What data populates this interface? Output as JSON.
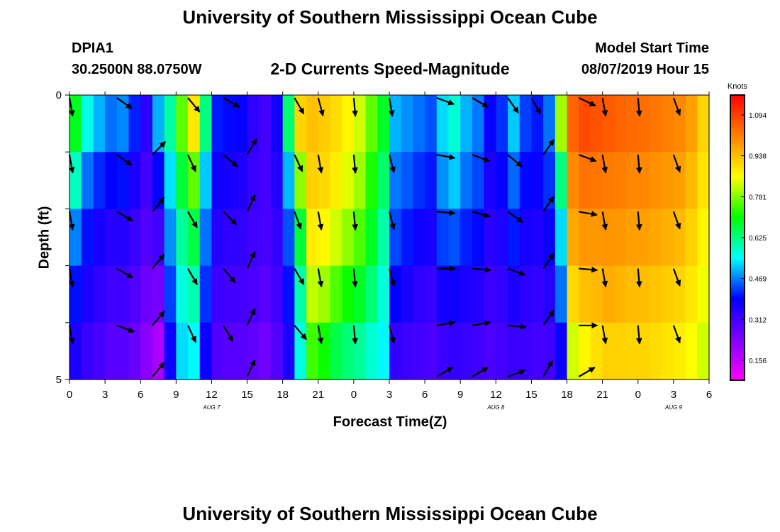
{
  "page": {
    "top_title": "University of Southern Mississippi Ocean Cube",
    "bottom_title": "University of Southern Mississippi Ocean Cube",
    "station": "DPIA1",
    "coords": "30.2500N 88.0750W",
    "subtitle": "2-D Currents Speed-Magnitude",
    "model_start_label": "Model Start Time",
    "model_start_value": "08/07/2019 Hour 15"
  },
  "chart_data": {
    "type": "heatmap",
    "title": "2-D Currents Speed-Magnitude",
    "xlabel": "Forecast Time(Z)",
    "ylabel": "Depth (ft)",
    "x_tick_labels": [
      "0",
      "3",
      "6",
      "9",
      "12",
      "15",
      "18",
      "21",
      "0",
      "3",
      "6",
      "9",
      "12",
      "15",
      "18",
      "21",
      "0",
      "3",
      "6"
    ],
    "x_range_hours": [
      0,
      54
    ],
    "date_labels": [
      {
        "text": "AUG 7",
        "hour": 12
      },
      {
        "text": "AUG 8",
        "hour": 36
      },
      {
        "text": "AUG 9",
        "hour": 51
      }
    ],
    "y_tick_labels": [
      "0",
      "5"
    ],
    "ylim": [
      0,
      5
    ],
    "depth_levels": [
      0,
      1,
      2,
      3,
      4,
      5
    ],
    "colorbar": {
      "unit": "Knots",
      "ticks": [
        "1.094",
        "0.938",
        "0.781",
        "0.625",
        "0.469",
        "0.312",
        "0.156"
      ],
      "tick_values": [
        1.094,
        0.938,
        0.781,
        0.625,
        0.469,
        0.312,
        0.156
      ],
      "range": [
        0.08,
        1.17
      ],
      "colors": [
        "#ff00ff",
        "#8000ff",
        "#0000ff",
        "#00ffff",
        "#00ff00",
        "#ffff00",
        "#ff8000",
        "#ff0000"
      ]
    },
    "speed_profile": [
      {
        "hour": 0,
        "speeds": [
          0.72,
          0.65,
          0.52,
          0.42,
          0.38,
          0.34
        ]
      },
      {
        "hour": 1,
        "speeds": [
          0.62,
          0.5,
          0.42,
          0.38,
          0.34,
          0.31
        ]
      },
      {
        "hour": 2,
        "speeds": [
          0.55,
          0.45,
          0.38,
          0.35,
          0.32,
          0.29
        ]
      },
      {
        "hour": 3,
        "speeds": [
          0.5,
          0.42,
          0.36,
          0.33,
          0.3,
          0.27
        ]
      },
      {
        "hour": 4,
        "speeds": [
          0.52,
          0.43,
          0.37,
          0.33,
          0.3,
          0.27
        ]
      },
      {
        "hour": 5,
        "speeds": [
          0.44,
          0.38,
          0.34,
          0.31,
          0.28,
          0.25
        ]
      },
      {
        "hour": 6,
        "speeds": [
          0.36,
          0.32,
          0.3,
          0.28,
          0.24,
          0.21
        ]
      },
      {
        "hour": 7,
        "speeds": [
          0.58,
          0.42,
          0.35,
          0.28,
          0.22,
          0.15
        ]
      },
      {
        "hour": 8,
        "speeds": [
          0.65,
          0.56,
          0.5,
          0.46,
          0.4,
          0.35
        ]
      },
      {
        "hour": 9,
        "speeds": [
          0.82,
          0.7,
          0.64,
          0.58,
          0.55,
          0.5
        ]
      },
      {
        "hour": 10,
        "speeds": [
          0.95,
          0.82,
          0.7,
          0.62,
          0.57,
          0.52
        ]
      },
      {
        "hour": 11,
        "speeds": [
          0.7,
          0.55,
          0.48,
          0.44,
          0.4,
          0.36
        ]
      },
      {
        "hour": 12,
        "speeds": [
          0.42,
          0.39,
          0.36,
          0.33,
          0.31,
          0.28
        ]
      },
      {
        "hour": 13,
        "speeds": [
          0.41,
          0.38,
          0.35,
          0.32,
          0.3,
          0.27
        ]
      },
      {
        "hour": 14,
        "speeds": [
          0.4,
          0.37,
          0.34,
          0.32,
          0.3,
          0.27
        ]
      },
      {
        "hour": 15,
        "speeds": [
          0.34,
          0.33,
          0.32,
          0.31,
          0.29,
          0.26
        ]
      },
      {
        "hour": 16,
        "speeds": [
          0.31,
          0.31,
          0.31,
          0.3,
          0.27,
          0.24
        ]
      },
      {
        "hour": 17,
        "speeds": [
          0.38,
          0.36,
          0.34,
          0.32,
          0.3,
          0.28
        ]
      },
      {
        "hour": 18,
        "speeds": [
          0.72,
          0.55,
          0.46,
          0.42,
          0.38,
          0.34
        ]
      },
      {
        "hour": 19,
        "speeds": [
          0.96,
          0.86,
          0.72,
          0.62,
          0.58,
          0.55
        ]
      },
      {
        "hour": 20,
        "speeds": [
          0.94,
          0.93,
          0.9,
          0.86,
          0.78,
          0.7
        ]
      },
      {
        "hour": 21,
        "speeds": [
          0.92,
          0.92,
          0.89,
          0.84,
          0.76,
          0.66
        ]
      },
      {
        "hour": 22,
        "speeds": [
          0.9,
          0.9,
          0.86,
          0.8,
          0.7,
          0.62
        ]
      },
      {
        "hour": 23,
        "speeds": [
          0.88,
          0.86,
          0.82,
          0.76,
          0.66,
          0.6
        ]
      },
      {
        "hour": 24,
        "speeds": [
          0.84,
          0.82,
          0.78,
          0.72,
          0.64,
          0.58
        ]
      },
      {
        "hour": 25,
        "speeds": [
          0.78,
          0.74,
          0.7,
          0.66,
          0.6,
          0.55
        ]
      },
      {
        "hour": 26,
        "speeds": [
          0.7,
          0.66,
          0.62,
          0.58,
          0.56,
          0.53
        ]
      },
      {
        "hour": 27,
        "speeds": [
          0.52,
          0.48,
          0.45,
          0.42,
          0.36,
          0.3
        ]
      },
      {
        "hour": 28,
        "speeds": [
          0.5,
          0.46,
          0.43,
          0.38,
          0.34,
          0.3
        ]
      },
      {
        "hour": 29,
        "speeds": [
          0.48,
          0.44,
          0.4,
          0.35,
          0.32,
          0.3
        ]
      },
      {
        "hour": 30,
        "speeds": [
          0.46,
          0.42,
          0.39,
          0.34,
          0.31,
          0.29
        ]
      },
      {
        "hour": 31,
        "speeds": [
          0.55,
          0.5,
          0.46,
          0.4,
          0.34,
          0.3
        ]
      },
      {
        "hour": 32,
        "speeds": [
          0.6,
          0.55,
          0.48,
          0.4,
          0.35,
          0.31
        ]
      },
      {
        "hour": 33,
        "speeds": [
          0.52,
          0.48,
          0.44,
          0.38,
          0.34,
          0.31
        ]
      },
      {
        "hour": 34,
        "speeds": [
          0.48,
          0.45,
          0.42,
          0.37,
          0.33,
          0.3
        ]
      },
      {
        "hour": 35,
        "speeds": [
          0.4,
          0.37,
          0.35,
          0.33,
          0.31,
          0.29
        ]
      },
      {
        "hour": 36,
        "speeds": [
          0.44,
          0.4,
          0.37,
          0.34,
          0.32,
          0.3
        ]
      },
      {
        "hour": 37,
        "speeds": [
          0.55,
          0.48,
          0.43,
          0.38,
          0.34,
          0.31
        ]
      },
      {
        "hour": 38,
        "speeds": [
          0.45,
          0.41,
          0.38,
          0.35,
          0.33,
          0.31
        ]
      },
      {
        "hour": 39,
        "speeds": [
          0.42,
          0.39,
          0.37,
          0.34,
          0.32,
          0.3
        ]
      },
      {
        "hour": 40,
        "speeds": [
          0.48,
          0.44,
          0.4,
          0.36,
          0.33,
          0.3
        ]
      },
      {
        "hour": 41,
        "speeds": [
          0.9,
          0.7,
          0.55,
          0.5,
          0.42,
          0.34
        ]
      },
      {
        "hour": 42,
        "speeds": [
          1.08,
          1.02,
          0.98,
          0.95,
          0.86,
          0.8
        ]
      },
      {
        "hour": 43,
        "speeds": [
          1.1,
          1.06,
          1.0,
          0.97,
          0.9,
          0.84
        ]
      },
      {
        "hour": 44,
        "speeds": [
          1.09,
          1.05,
          1.0,
          0.97,
          0.92,
          0.87
        ]
      },
      {
        "hour": 45,
        "speeds": [
          1.08,
          1.04,
          1.0,
          0.98,
          0.94,
          0.89
        ]
      },
      {
        "hour": 46,
        "speeds": [
          1.07,
          1.03,
          1.0,
          0.97,
          0.93,
          0.9
        ]
      },
      {
        "hour": 47,
        "speeds": [
          1.06,
          1.02,
          0.99,
          0.96,
          0.92,
          0.9
        ]
      },
      {
        "hour": 48,
        "speeds": [
          1.05,
          1.02,
          0.99,
          0.96,
          0.92,
          0.9
        ]
      },
      {
        "hour": 49,
        "speeds": [
          1.04,
          1.01,
          0.98,
          0.95,
          0.91,
          0.89
        ]
      },
      {
        "hour": 50,
        "speeds": [
          1.03,
          1.0,
          0.97,
          0.94,
          0.9,
          0.88
        ]
      },
      {
        "hour": 51,
        "speeds": [
          1.02,
          0.99,
          0.96,
          0.93,
          0.89,
          0.87
        ]
      },
      {
        "hour": 52,
        "speeds": [
          0.99,
          0.96,
          0.93,
          0.9,
          0.87,
          0.85
        ]
      },
      {
        "hour": 53,
        "speeds": [
          0.92,
          0.9,
          0.88,
          0.86,
          0.84,
          0.82
        ]
      }
    ],
    "vector_columns": [
      {
        "hour": 0,
        "directions_deg": [
          170,
          170,
          170,
          170,
          170,
          null
        ]
      },
      {
        "hour": 4,
        "directions_deg": [
          125,
          125,
          120,
          120,
          110,
          null
        ]
      },
      {
        "hour": 7,
        "directions_deg": [
          null,
          45,
          40,
          40,
          40,
          40
        ]
      },
      {
        "hour": 10,
        "directions_deg": [
          140,
          155,
          150,
          150,
          155,
          null
        ]
      },
      {
        "hour": 13,
        "directions_deg": [
          120,
          130,
          135,
          140,
          150,
          null
        ]
      },
      {
        "hour": 15,
        "directions_deg": [
          null,
          30,
          25,
          25,
          25,
          25
        ]
      },
      {
        "hour": 19,
        "directions_deg": [
          150,
          155,
          160,
          150,
          140,
          null
        ]
      },
      {
        "hour": 21,
        "directions_deg": [
          165,
          170,
          170,
          170,
          170,
          null
        ]
      },
      {
        "hour": 24,
        "directions_deg": [
          175,
          175,
          175,
          175,
          175,
          null
        ]
      },
      {
        "hour": 27,
        "directions_deg": [
          170,
          165,
          165,
          165,
          165,
          null
        ]
      },
      {
        "hour": 31,
        "directions_deg": [
          110,
          100,
          95,
          90,
          80,
          60
        ]
      },
      {
        "hour": 34,
        "directions_deg": [
          120,
          110,
          105,
          95,
          80,
          60
        ]
      },
      {
        "hour": 37,
        "directions_deg": [
          145,
          130,
          125,
          110,
          95,
          70
        ]
      },
      {
        "hour": 39,
        "directions_deg": [
          150,
          null,
          null,
          null,
          null,
          null
        ]
      },
      {
        "hour": 40,
        "directions_deg": [
          null,
          35,
          35,
          35,
          35,
          30
        ]
      },
      {
        "hour": 43,
        "directions_deg": [
          115,
          110,
          100,
          95,
          90,
          60
        ]
      },
      {
        "hour": 45,
        "directions_deg": [
          170,
          170,
          170,
          170,
          170,
          null
        ]
      },
      {
        "hour": 48,
        "directions_deg": [
          175,
          175,
          175,
          175,
          175,
          null
        ]
      },
      {
        "hour": 51,
        "directions_deg": [
          160,
          160,
          160,
          160,
          160,
          null
        ]
      }
    ]
  }
}
